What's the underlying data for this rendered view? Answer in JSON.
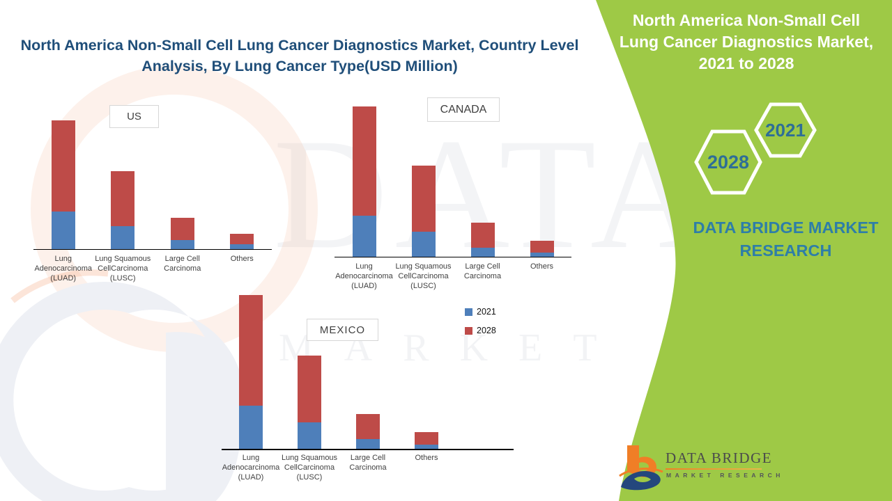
{
  "main_title": "North America  Non-Small Cell Lung Cancer Diagnostics Market, Country Level Analysis, By Lung Cancer Type(USD Million)",
  "right_panel": {
    "title": "North America  Non-Small Cell Lung Cancer Diagnostics Market, 2021 to 2028",
    "hexagon_labels": {
      "front": "2028",
      "back": "2021"
    },
    "brand_line1": "DATA BRIDGE MARKET",
    "brand_line2": "RESEARCH"
  },
  "logo": {
    "name": "DATA BRIDGE",
    "subtitle": "MARKET RESEARCH"
  },
  "watermark": {
    "line1": "DATA BRIDGE",
    "line2": "MARKET RESEARCH"
  },
  "colors": {
    "green_panel": "#9AC73E",
    "series_2021_blue": "#4E7FBA",
    "series_2028_red": "#BE4B48",
    "title_navy": "#1F4E79",
    "panel_text_blue": "#2E7EA8",
    "logo_orange": "#F07E26",
    "logo_dark_blue": "#24477D"
  },
  "legend": {
    "items": [
      {
        "label": "2021",
        "color": "#4E7FBA"
      },
      {
        "label": "2028",
        "color": "#BE4B48"
      }
    ]
  },
  "chart_data": [
    {
      "type": "bar",
      "subtype": "stacked-column",
      "title": "US",
      "categories": [
        "Lung Adenocarcinoma (LUAD)",
        "Lung Squamous CellCarcinoma (LUSC)",
        "Large Cell Carcinoma",
        "Others"
      ],
      "series": [
        {
          "name": "2021",
          "color": "#4E7FBA",
          "values": [
            54,
            33,
            13,
            7
          ]
        },
        {
          "name": "2028",
          "color": "#BE4B48",
          "values": [
            131,
            79,
            32,
            15
          ]
        }
      ],
      "xlabel": "",
      "ylabel": "",
      "axis_note": "no numeric value axis shown; values are relative units proportional to bar segment heights",
      "grid": false,
      "legend_position": "right-of-mexico-chart"
    },
    {
      "type": "bar",
      "subtype": "stacked-column",
      "title": "CANADA",
      "categories": [
        "Lung Adenocarcinoma (LUAD)",
        "Lung Squamous CellCarcinoma (LUSC)",
        "Large Cell Carcinoma",
        "Others"
      ],
      "series": [
        {
          "name": "2021",
          "color": "#4E7FBA",
          "values": [
            59,
            36,
            13,
            6
          ]
        },
        {
          "name": "2028",
          "color": "#BE4B48",
          "values": [
            157,
            95,
            36,
            17
          ]
        }
      ],
      "xlabel": "",
      "ylabel": "",
      "axis_note": "no numeric value axis shown; values are relative units proportional to bar segment heights",
      "grid": false
    },
    {
      "type": "bar",
      "subtype": "stacked-column",
      "title": "MEXICO",
      "categories": [
        "Lung Adenocarcinoma (LUAD)",
        "Lung Squamous CellCarcinoma (LUSC)",
        "Large Cell Carcinoma",
        "Others"
      ],
      "series": [
        {
          "name": "2021",
          "color": "#4E7FBA",
          "values": [
            62,
            38,
            14,
            6
          ]
        },
        {
          "name": "2028",
          "color": "#BE4B48",
          "values": [
            159,
            96,
            36,
            18
          ]
        }
      ],
      "xlabel": "",
      "ylabel": "",
      "axis_note": "no numeric value axis shown; values are relative units proportional to bar segment heights",
      "grid": false
    }
  ]
}
